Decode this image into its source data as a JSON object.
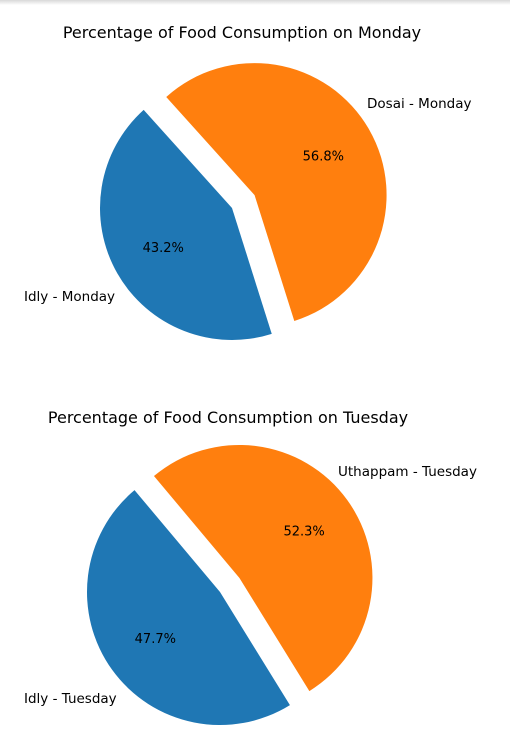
{
  "chart_data": [
    {
      "type": "pie",
      "title": "Percentage of Food Consumption on Monday",
      "labels": [
        "Idly - Monday",
        "Dosai - Monday"
      ],
      "values": [
        43.2,
        56.8
      ],
      "value_labels": [
        "43.2%",
        "56.8%"
      ],
      "colors": [
        "#1f77b4",
        "#ff7f0e"
      ],
      "exploded": "Dosai - Monday",
      "legend": "none"
    },
    {
      "type": "pie",
      "title": "Percentage of Food Consumption on Tuesday",
      "labels": [
        "Idly - Tuesday",
        "Uthappam - Tuesday"
      ],
      "values": [
        47.7,
        52.3
      ],
      "value_labels": [
        "47.7%",
        "52.3%"
      ],
      "colors": [
        "#1f77b4",
        "#ff7f0e"
      ],
      "exploded": "Uthappam - Tuesday",
      "legend": "none"
    }
  ]
}
